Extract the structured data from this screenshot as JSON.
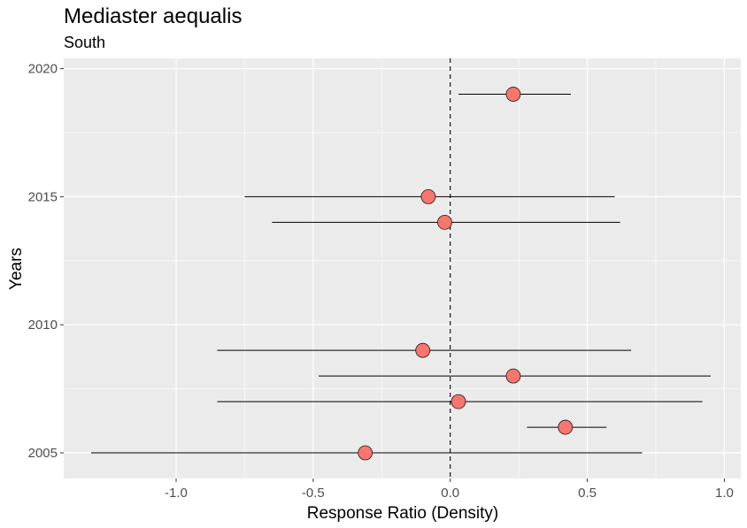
{
  "chart_data": {
    "type": "scatter",
    "title": "Mediaster aequalis",
    "subtitle": "South",
    "xlabel": "Response Ratio (Density)",
    "ylabel": "Years",
    "xlim": [
      -1.41,
      1.06
    ],
    "ylim": [
      2004.0,
      2020.4
    ],
    "x_ticks": [
      -1.0,
      -0.5,
      0.0,
      0.5,
      1.0
    ],
    "x_tick_labels": [
      "-1.0",
      "-0.5",
      "0.0",
      "0.5",
      "1.0"
    ],
    "y_ticks": [
      2005,
      2010,
      2015,
      2020
    ],
    "y_tick_labels": [
      "2005",
      "2010",
      "2015",
      "2020"
    ],
    "reference_line_x": 0,
    "grid": true,
    "point_color": "#F8766D",
    "panel_color": "#EBEBEB",
    "points": [
      {
        "year": 2019,
        "x": 0.23,
        "lo": 0.03,
        "hi": 0.44
      },
      {
        "year": 2015,
        "x": -0.08,
        "lo": -0.75,
        "hi": 0.6
      },
      {
        "year": 2014,
        "x": -0.02,
        "lo": -0.65,
        "hi": 0.62
      },
      {
        "year": 2009,
        "x": -0.1,
        "lo": -0.85,
        "hi": 0.66
      },
      {
        "year": 2008,
        "x": 0.23,
        "lo": -0.48,
        "hi": 0.95
      },
      {
        "year": 2007,
        "x": 0.03,
        "lo": -0.85,
        "hi": 0.92
      },
      {
        "year": 2006,
        "x": 0.42,
        "lo": 0.28,
        "hi": 0.57
      },
      {
        "year": 2005,
        "x": -0.31,
        "lo": -1.31,
        "hi": 0.7
      }
    ]
  }
}
